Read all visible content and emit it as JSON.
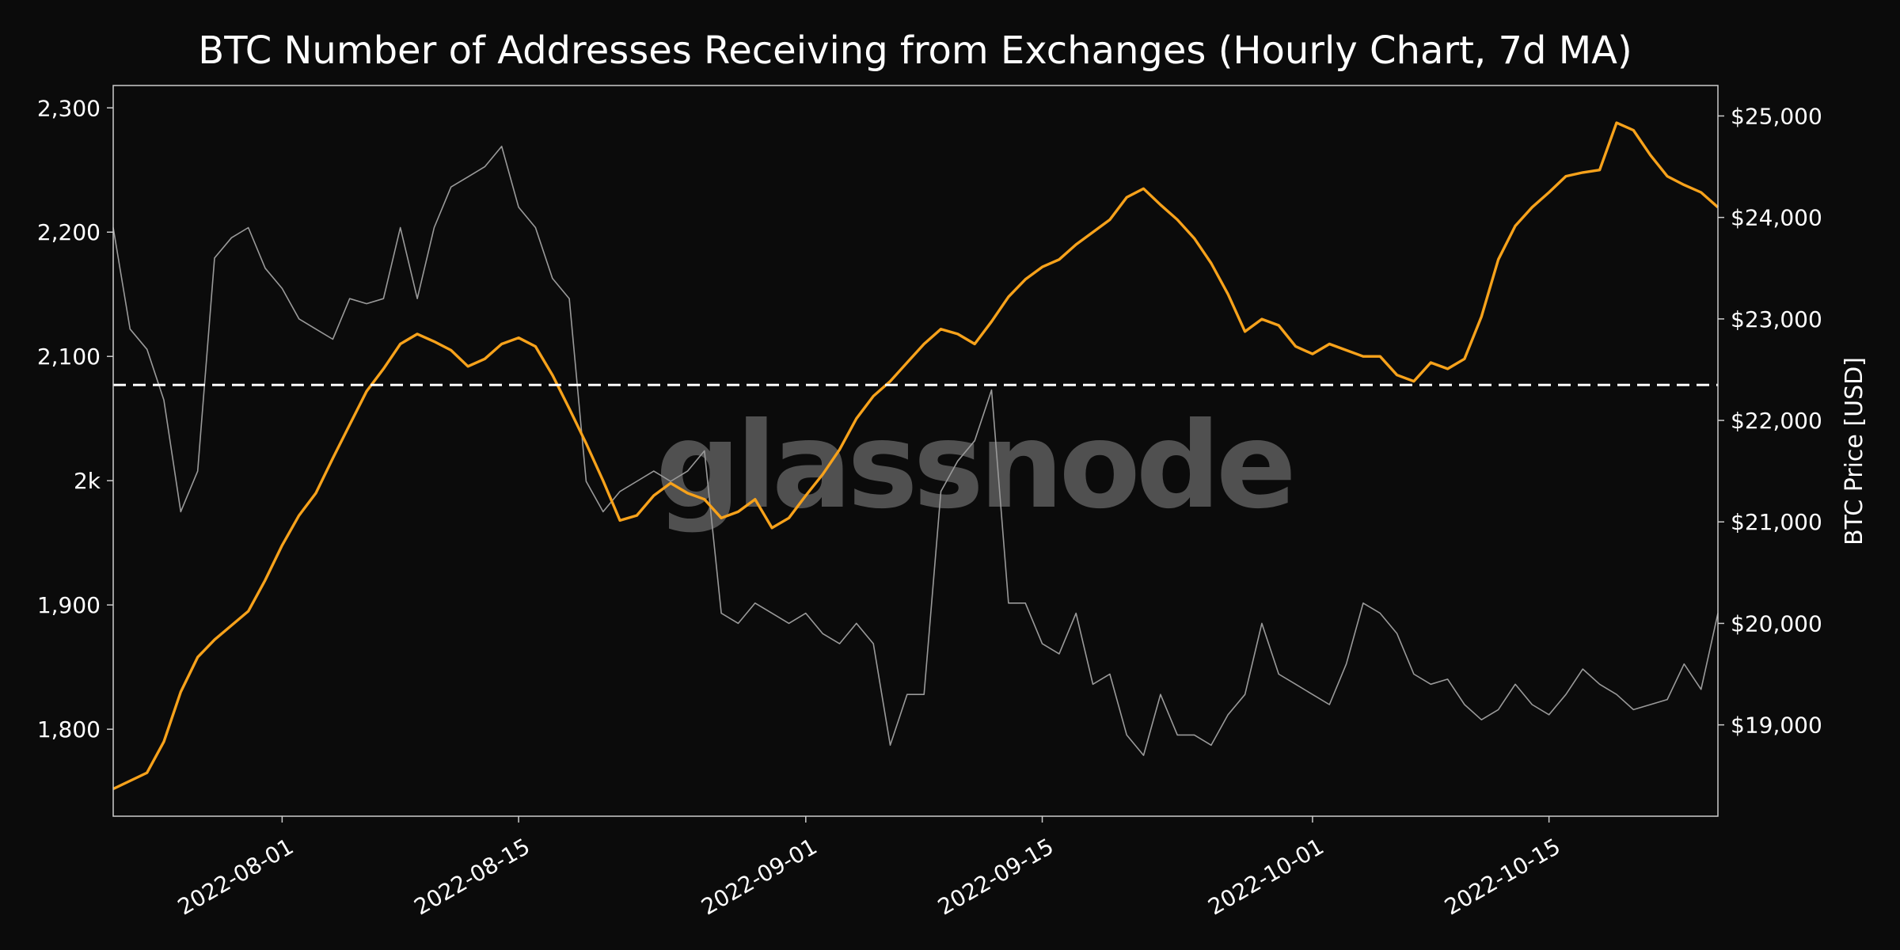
{
  "chart_data": {
    "type": "line",
    "title": "BTC Number of Addresses Receiving from Exchanges (Hourly Chart, 7d MA)",
    "watermark": "glassnode",
    "xlim": [
      "2022-07-22",
      "2022-10-25"
    ],
    "x_ticks": [
      "2022-08-01",
      "2022-08-15",
      "2022-09-01",
      "2022-09-15",
      "2022-10-01",
      "2022-10-15"
    ],
    "left_axis": {
      "label": "",
      "ylim": [
        1730,
        2318
      ],
      "ticks": [
        1800,
        1900,
        2000,
        2100,
        2200,
        2300
      ],
      "tick_labels": [
        "1,800",
        "1,900",
        "2k",
        "2,100",
        "2,200",
        "2,300"
      ]
    },
    "right_axis": {
      "label": "BTC Price [USD]",
      "ylim": [
        18100,
        25300
      ],
      "ticks": [
        19000,
        20000,
        21000,
        22000,
        23000,
        24000,
        25000
      ],
      "tick_labels": [
        "$19,000",
        "$20,000",
        "$21,000",
        "$22,000",
        "$23,000",
        "$24,000",
        "$25,000"
      ]
    },
    "reference_line": {
      "axis": "left",
      "value": 2077,
      "style": "dashed",
      "color": "#ffffff"
    },
    "series": [
      {
        "axis": "left",
        "color": "#f7a21b",
        "points": [
          [
            "2022-07-22",
            1752
          ],
          [
            "2022-07-24",
            1765
          ],
          [
            "2022-07-25",
            1790
          ],
          [
            "2022-07-26",
            1830
          ],
          [
            "2022-07-27",
            1858
          ],
          [
            "2022-07-28",
            1872
          ],
          [
            "2022-07-30",
            1895
          ],
          [
            "2022-07-31",
            1920
          ],
          [
            "2022-08-01",
            1948
          ],
          [
            "2022-08-02",
            1972
          ],
          [
            "2022-08-03",
            1990
          ],
          [
            "2022-08-04",
            2018
          ],
          [
            "2022-08-05",
            2045
          ],
          [
            "2022-08-06",
            2072
          ],
          [
            "2022-08-07",
            2090
          ],
          [
            "2022-08-08",
            2110
          ],
          [
            "2022-08-09",
            2118
          ],
          [
            "2022-08-10",
            2112
          ],
          [
            "2022-08-11",
            2105
          ],
          [
            "2022-08-12",
            2092
          ],
          [
            "2022-08-13",
            2098
          ],
          [
            "2022-08-14",
            2110
          ],
          [
            "2022-08-15",
            2115
          ],
          [
            "2022-08-16",
            2108
          ],
          [
            "2022-08-17",
            2085
          ],
          [
            "2022-08-18",
            2058
          ],
          [
            "2022-08-19",
            2030
          ],
          [
            "2022-08-20",
            2000
          ],
          [
            "2022-08-21",
            1968
          ],
          [
            "2022-08-22",
            1972
          ],
          [
            "2022-08-23",
            1988
          ],
          [
            "2022-08-24",
            1998
          ],
          [
            "2022-08-25",
            1990
          ],
          [
            "2022-08-26",
            1985
          ],
          [
            "2022-08-27",
            1970
          ],
          [
            "2022-08-28",
            1975
          ],
          [
            "2022-08-29",
            1985
          ],
          [
            "2022-08-30",
            1962
          ],
          [
            "2022-08-31",
            1970
          ],
          [
            "2022-09-01",
            1988
          ],
          [
            "2022-09-02",
            2005
          ],
          [
            "2022-09-03",
            2025
          ],
          [
            "2022-09-04",
            2050
          ],
          [
            "2022-09-05",
            2068
          ],
          [
            "2022-09-06",
            2080
          ],
          [
            "2022-09-07",
            2095
          ],
          [
            "2022-09-08",
            2110
          ],
          [
            "2022-09-09",
            2122
          ],
          [
            "2022-09-10",
            2118
          ],
          [
            "2022-09-11",
            2110
          ],
          [
            "2022-09-12",
            2128
          ],
          [
            "2022-09-13",
            2148
          ],
          [
            "2022-09-14",
            2162
          ],
          [
            "2022-09-15",
            2172
          ],
          [
            "2022-09-16",
            2178
          ],
          [
            "2022-09-17",
            2190
          ],
          [
            "2022-09-18",
            2200
          ],
          [
            "2022-09-19",
            2210
          ],
          [
            "2022-09-20",
            2228
          ],
          [
            "2022-09-21",
            2235
          ],
          [
            "2022-09-22",
            2222
          ],
          [
            "2022-09-23",
            2210
          ],
          [
            "2022-09-24",
            2195
          ],
          [
            "2022-09-25",
            2175
          ],
          [
            "2022-09-26",
            2150
          ],
          [
            "2022-09-27",
            2120
          ],
          [
            "2022-09-28",
            2130
          ],
          [
            "2022-09-29",
            2125
          ],
          [
            "2022-09-30",
            2108
          ],
          [
            "2022-10-01",
            2102
          ],
          [
            "2022-10-02",
            2110
          ],
          [
            "2022-10-03",
            2105
          ],
          [
            "2022-10-04",
            2100
          ],
          [
            "2022-10-05",
            2100
          ],
          [
            "2022-10-06",
            2085
          ],
          [
            "2022-10-07",
            2080
          ],
          [
            "2022-10-08",
            2095
          ],
          [
            "2022-10-09",
            2090
          ],
          [
            "2022-10-10",
            2098
          ],
          [
            "2022-10-11",
            2132
          ],
          [
            "2022-10-12",
            2178
          ],
          [
            "2022-10-13",
            2205
          ],
          [
            "2022-10-14",
            2220
          ],
          [
            "2022-10-15",
            2232
          ],
          [
            "2022-10-16",
            2245
          ],
          [
            "2022-10-17",
            2248
          ],
          [
            "2022-10-18",
            2250
          ],
          [
            "2022-10-19",
            2288
          ],
          [
            "2022-10-20",
            2282
          ],
          [
            "2022-10-21",
            2262
          ],
          [
            "2022-10-22",
            2245
          ],
          [
            "2022-10-23",
            2238
          ],
          [
            "2022-10-24",
            2232
          ],
          [
            "2022-10-25",
            2220
          ]
        ]
      },
      {
        "axis": "right",
        "color": "#9a9a9a",
        "points": [
          [
            "2022-07-22",
            23900
          ],
          [
            "2022-07-23",
            22900
          ],
          [
            "2022-07-24",
            22700
          ],
          [
            "2022-07-25",
            22200
          ],
          [
            "2022-07-26",
            21100
          ],
          [
            "2022-07-27",
            21500
          ],
          [
            "2022-07-28",
            23600
          ],
          [
            "2022-07-29",
            23800
          ],
          [
            "2022-07-30",
            23900
          ],
          [
            "2022-07-31",
            23500
          ],
          [
            "2022-08-01",
            23300
          ],
          [
            "2022-08-02",
            23000
          ],
          [
            "2022-08-03",
            22900
          ],
          [
            "2022-08-04",
            22800
          ],
          [
            "2022-08-05",
            23200
          ],
          [
            "2022-08-06",
            23150
          ],
          [
            "2022-08-07",
            23200
          ],
          [
            "2022-08-08",
            23900
          ],
          [
            "2022-08-09",
            23200
          ],
          [
            "2022-08-10",
            23900
          ],
          [
            "2022-08-11",
            24300
          ],
          [
            "2022-08-12",
            24400
          ],
          [
            "2022-08-13",
            24500
          ],
          [
            "2022-08-14",
            24700
          ],
          [
            "2022-08-15",
            24100
          ],
          [
            "2022-08-16",
            23900
          ],
          [
            "2022-08-17",
            23400
          ],
          [
            "2022-08-18",
            23200
          ],
          [
            "2022-08-19",
            21400
          ],
          [
            "2022-08-20",
            21100
          ],
          [
            "2022-08-21",
            21300
          ],
          [
            "2022-08-22",
            21400
          ],
          [
            "2022-08-23",
            21500
          ],
          [
            "2022-08-24",
            21400
          ],
          [
            "2022-08-25",
            21500
          ],
          [
            "2022-08-26",
            21700
          ],
          [
            "2022-08-27",
            20100
          ],
          [
            "2022-08-28",
            20000
          ],
          [
            "2022-08-29",
            20200
          ],
          [
            "2022-08-30",
            20100
          ],
          [
            "2022-08-31",
            20000
          ],
          [
            "2022-09-01",
            20100
          ],
          [
            "2022-09-02",
            19900
          ],
          [
            "2022-09-03",
            19800
          ],
          [
            "2022-09-04",
            20000
          ],
          [
            "2022-09-05",
            19800
          ],
          [
            "2022-09-06",
            18800
          ],
          [
            "2022-09-07",
            19300
          ],
          [
            "2022-09-08",
            19300
          ],
          [
            "2022-09-09",
            21300
          ],
          [
            "2022-09-10",
            21600
          ],
          [
            "2022-09-11",
            21800
          ],
          [
            "2022-09-12",
            22300
          ],
          [
            "2022-09-13",
            20200
          ],
          [
            "2022-09-14",
            20200
          ],
          [
            "2022-09-15",
            19800
          ],
          [
            "2022-09-16",
            19700
          ],
          [
            "2022-09-17",
            20100
          ],
          [
            "2022-09-18",
            19400
          ],
          [
            "2022-09-19",
            19500
          ],
          [
            "2022-09-20",
            18900
          ],
          [
            "2022-09-21",
            18700
          ],
          [
            "2022-09-22",
            19300
          ],
          [
            "2022-09-23",
            18900
          ],
          [
            "2022-09-24",
            18900
          ],
          [
            "2022-09-25",
            18800
          ],
          [
            "2022-09-26",
            19100
          ],
          [
            "2022-09-27",
            19300
          ],
          [
            "2022-09-28",
            20000
          ],
          [
            "2022-09-29",
            19500
          ],
          [
            "2022-09-30",
            19400
          ],
          [
            "2022-10-01",
            19300
          ],
          [
            "2022-10-02",
            19200
          ],
          [
            "2022-10-03",
            19600
          ],
          [
            "2022-10-04",
            20200
          ],
          [
            "2022-10-05",
            20100
          ],
          [
            "2022-10-06",
            19900
          ],
          [
            "2022-10-07",
            19500
          ],
          [
            "2022-10-08",
            19400
          ],
          [
            "2022-10-09",
            19450
          ],
          [
            "2022-10-10",
            19200
          ],
          [
            "2022-10-11",
            19050
          ],
          [
            "2022-10-12",
            19150
          ],
          [
            "2022-10-13",
            19400
          ],
          [
            "2022-10-14",
            19200
          ],
          [
            "2022-10-15",
            19100
          ],
          [
            "2022-10-16",
            19300
          ],
          [
            "2022-10-17",
            19550
          ],
          [
            "2022-10-18",
            19400
          ],
          [
            "2022-10-19",
            19300
          ],
          [
            "2022-10-20",
            19150
          ],
          [
            "2022-10-21",
            19200
          ],
          [
            "2022-10-22",
            19250
          ],
          [
            "2022-10-23",
            19600
          ],
          [
            "2022-10-24",
            19350
          ],
          [
            "2022-10-25",
            20100
          ]
        ]
      }
    ]
  }
}
